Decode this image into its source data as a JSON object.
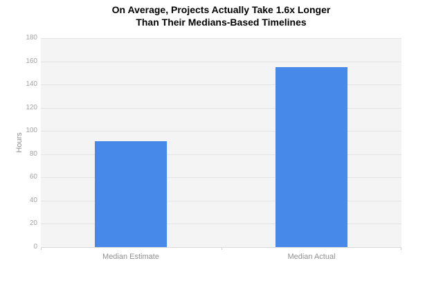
{
  "chart": {
    "title_line1": "On Average, Projects Actually Take 1.6x Longer",
    "title_line2": "Than Their Medians-Based Timelines"
  },
  "chart_data": {
    "type": "bar",
    "categories": [
      "Median Estimate",
      "Median Actual"
    ],
    "values": [
      91,
      155
    ],
    "title": "On Average, Projects Actually Take 1.6x Longer Than Their Medians-Based Timelines",
    "xlabel": "",
    "ylabel": "Hours",
    "ylim": [
      0,
      180
    ],
    "yticks": [
      0,
      20,
      40,
      60,
      80,
      100,
      120,
      140,
      160,
      180
    ],
    "grid": true,
    "legend": "none",
    "colors": {
      "bar": "#4689e8",
      "plot_background": "#f4f4f4",
      "gridline": "#e4e4e4",
      "axis_line": "#d9d9d9",
      "tick_label": "#a3a3a3",
      "category_label": "#8f8f8f",
      "title": "#000000",
      "page_background": "#ffffff"
    }
  }
}
